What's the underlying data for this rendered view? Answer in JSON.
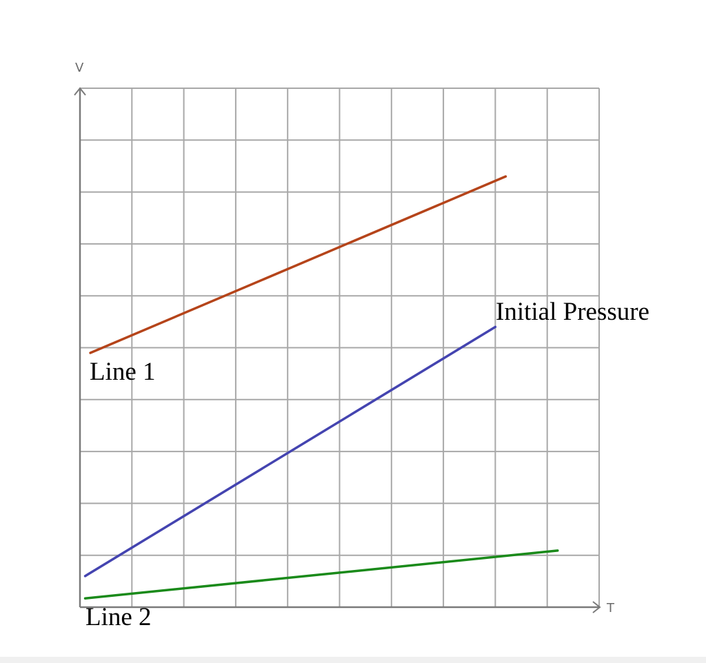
{
  "chart_data": {
    "type": "line",
    "xlabel": "T",
    "ylabel": "V",
    "xlim": [
      0,
      10
    ],
    "ylim": [
      0,
      10
    ],
    "grid": true,
    "series": [
      {
        "name": "Line 1",
        "color": "#b5441a",
        "x": [
          0.2,
          8.2
        ],
        "y": [
          4.9,
          8.3
        ]
      },
      {
        "name": "Initial Pressure",
        "color": "#4444b0",
        "x": [
          0.1,
          8.0
        ],
        "y": [
          0.6,
          5.4
        ]
      },
      {
        "name": "Line 2",
        "color": "#1a8a1a",
        "x": [
          0.1,
          9.2
        ],
        "y": [
          0.17,
          1.09
        ]
      }
    ]
  }
}
